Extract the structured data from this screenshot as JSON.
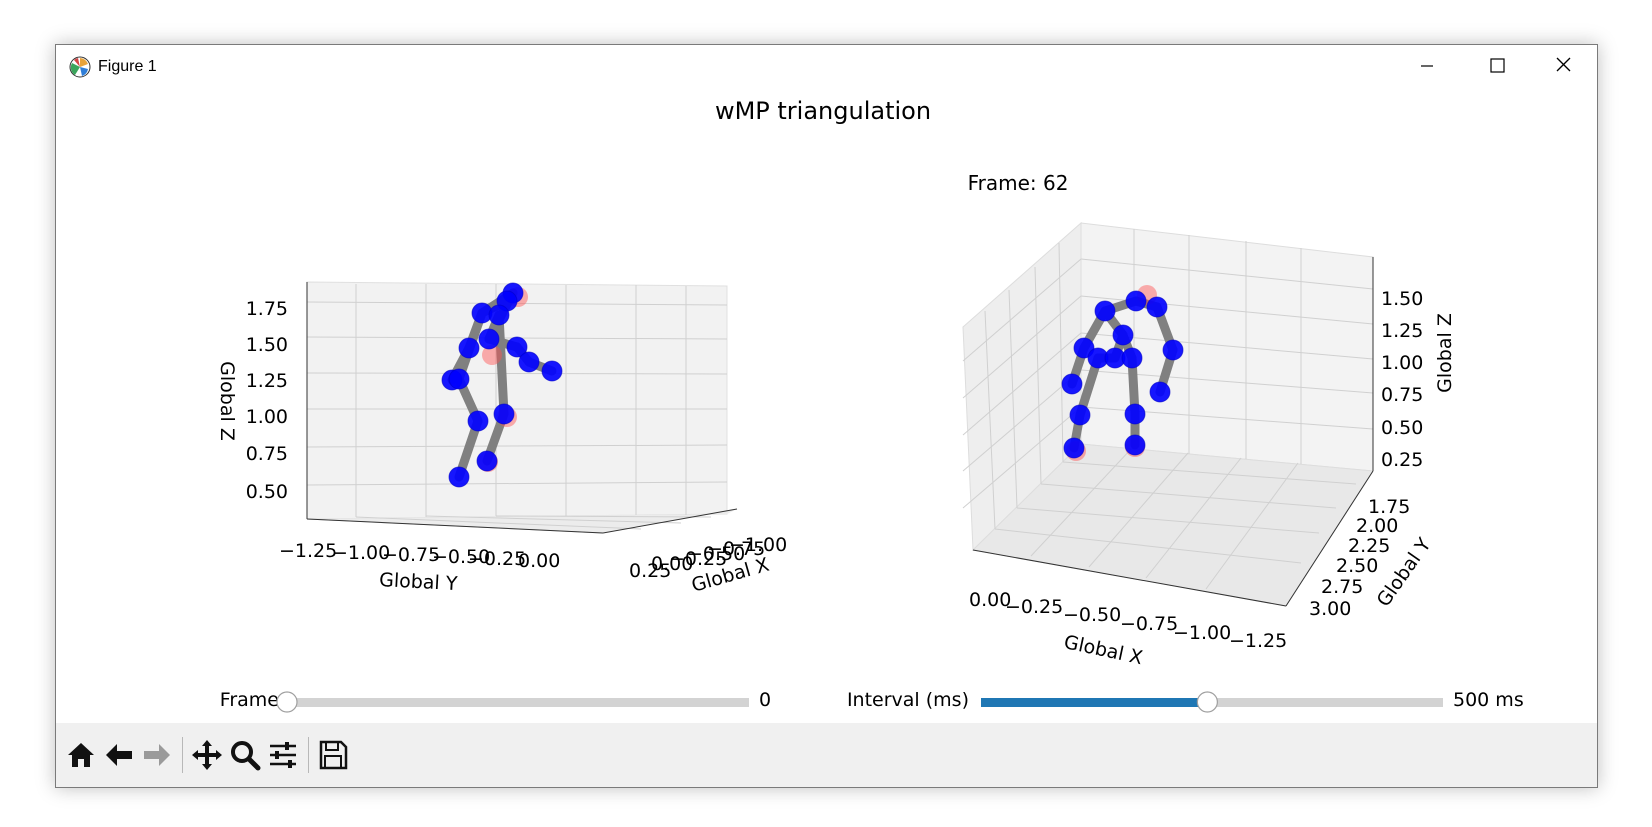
{
  "window": {
    "title": "Figure 1",
    "controls": [
      "minimize",
      "maximize",
      "close"
    ]
  },
  "figure": {
    "suptitle": "wMP triangulation",
    "right_title": "Frame: 62"
  },
  "chart_data": [
    {
      "type": "scatter",
      "projection": "3d",
      "title": "",
      "xlabel": "Global Y",
      "xlabel2": "Global X",
      "zlabel": "Global Z",
      "y_ticks": [
        "−1.25",
        "−1.00",
        "−0.75",
        "−0.50",
        "−0.25",
        "0.00"
      ],
      "x_ticks": [
        "0.25",
        "0.00",
        "−0.25",
        "−0.50",
        "−0.75",
        "−1.00"
      ],
      "z_ticks": [
        "0.50",
        "0.75",
        "1.00",
        "1.25",
        "1.50",
        "1.75"
      ],
      "zlim": [
        0.4,
        1.85
      ],
      "series": [
        {
          "color": "#0000ff"
        },
        {
          "color": "#ff6060"
        },
        {
          "color": "#808080"
        }
      ],
      "grid": true
    },
    {
      "type": "scatter",
      "projection": "3d",
      "title": "Frame: 62",
      "xlabel": "Global X",
      "ylabel": "Global Y",
      "zlabel": "Global Z",
      "x_ticks": [
        "0.00",
        "−0.25",
        "−0.50",
        "−0.75",
        "−1.00",
        "−1.25"
      ],
      "y_ticks": [
        "1.75",
        "2.00",
        "2.25",
        "2.50",
        "2.75",
        "3.00"
      ],
      "z_ticks": [
        "0.25",
        "0.50",
        "0.75",
        "1.00",
        "1.25",
        "1.50"
      ],
      "zlim": [
        0.2,
        1.6
      ],
      "series": [
        {
          "color": "#0000ff"
        },
        {
          "color": "#ff6060"
        },
        {
          "color": "#808080"
        }
      ],
      "grid": true
    }
  ],
  "sliders": {
    "frame": {
      "label": "Frame",
      "value": 0,
      "value_text": "0",
      "min": 0,
      "fraction": 0.0
    },
    "interval": {
      "label": "Interval (ms)",
      "value": 500,
      "value_text": "500 ms",
      "fraction": 0.49,
      "color": "#1f77b4"
    }
  },
  "toolbar": {
    "buttons": [
      "home",
      "back",
      "forward",
      "pan",
      "zoom",
      "configure-subplots",
      "save"
    ]
  },
  "skeleton_left": {
    "joints": [
      [
        512,
        292,
        1
      ],
      [
        506,
        300,
        1
      ],
      [
        481,
        312,
        1
      ],
      [
        498,
        314,
        1
      ],
      [
        468,
        347,
        1
      ],
      [
        488,
        338,
        1
      ],
      [
        516,
        346,
        1
      ],
      [
        451,
        379,
        1
      ],
      [
        458,
        378,
        1
      ],
      [
        528,
        361,
        1
      ],
      [
        551,
        370,
        1
      ],
      [
        477,
        420,
        1
      ],
      [
        503,
        413,
        1
      ],
      [
        458,
        476,
        1
      ],
      [
        486,
        460,
        1
      ]
    ],
    "ghosts": [
      [
        517,
        296
      ],
      [
        487,
        461
      ],
      [
        491,
        354
      ],
      [
        506,
        416
      ]
    ],
    "bones": [
      [
        0,
        2
      ],
      [
        2,
        4
      ],
      [
        4,
        7
      ],
      [
        0,
        5
      ],
      [
        5,
        6
      ],
      [
        6,
        9
      ],
      [
        9,
        10
      ],
      [
        2,
        8
      ],
      [
        8,
        11
      ],
      [
        11,
        13
      ],
      [
        5,
        3
      ],
      [
        3,
        12
      ],
      [
        12,
        14
      ],
      [
        1,
        2
      ]
    ]
  },
  "skeleton_right": {
    "joints": [
      [
        1135,
        300,
        1
      ],
      [
        1156,
        306,
        1
      ],
      [
        1104,
        310,
        1
      ],
      [
        1122,
        334,
        1
      ],
      [
        1083,
        347,
        1
      ],
      [
        1172,
        349,
        1
      ],
      [
        1097,
        357,
        1
      ],
      [
        1114,
        357,
        1
      ],
      [
        1131,
        357,
        1
      ],
      [
        1071,
        383,
        1
      ],
      [
        1159,
        391,
        1
      ],
      [
        1079,
        414,
        1
      ],
      [
        1134,
        413,
        1
      ],
      [
        1073,
        447,
        1
      ],
      [
        1134,
        444,
        1
      ]
    ],
    "ghosts": [
      [
        1146,
        294
      ],
      [
        1075,
        450
      ],
      [
        1134,
        446
      ]
    ],
    "bones": [
      [
        0,
        2
      ],
      [
        2,
        4
      ],
      [
        4,
        9
      ],
      [
        0,
        1
      ],
      [
        1,
        5
      ],
      [
        5,
        10
      ],
      [
        2,
        3
      ],
      [
        3,
        7
      ],
      [
        7,
        6
      ],
      [
        6,
        11
      ],
      [
        11,
        13
      ],
      [
        3,
        8
      ],
      [
        8,
        12
      ],
      [
        12,
        14
      ]
    ]
  }
}
